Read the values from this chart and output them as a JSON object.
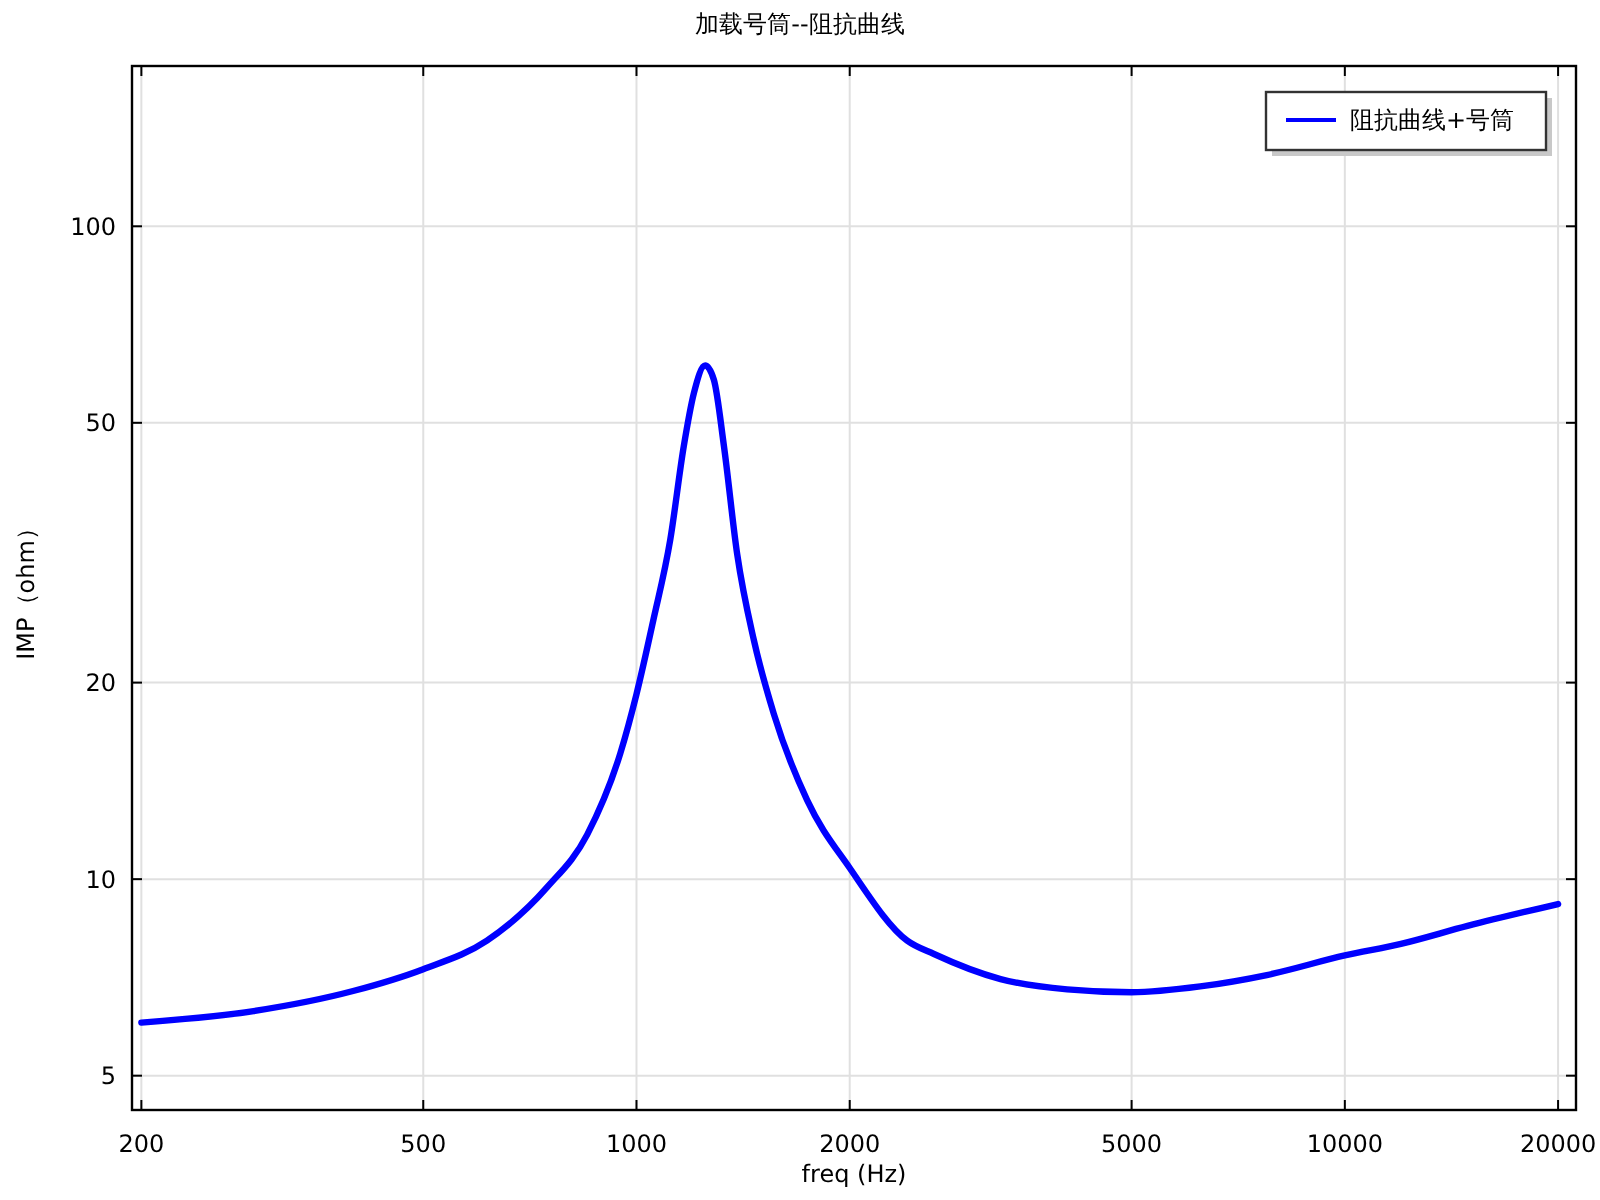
{
  "chart_data": {
    "type": "line",
    "title": "加载号筒--阻抗曲线",
    "xlabel": "freq (Hz)",
    "ylabel": "IMP（ohm）",
    "log": "xy",
    "grid": true,
    "legend": "top right",
    "xlim": [
      194,
      21200
    ],
    "ylim": [
      4.43,
      176
    ],
    "xticks": [
      200,
      500,
      1000,
      2000,
      5000,
      10000,
      20000
    ],
    "yticks": [
      5,
      10,
      20,
      50,
      100
    ],
    "series": [
      {
        "name": "阻抗曲线+号筒",
        "color": "#0000ff",
        "x": [
          200,
          288,
          398,
          500,
          615,
          748,
          852,
          949,
          1000,
          1056,
          1116,
          1166,
          1205,
          1250,
          1286,
          1329,
          1387,
          1465,
          1563,
          1742,
          2000,
          2411,
          2630,
          3266,
          4055,
          5000,
          6250,
          7760,
          10000,
          12000,
          14900,
          20000
        ],
        "values": [
          6.03,
          6.28,
          6.74,
          7.28,
          8.05,
          9.72,
          11.7,
          15.6,
          19.2,
          24.9,
          33.1,
          46,
          55.5,
          61.2,
          58.2,
          46,
          31.5,
          23.2,
          17.9,
          13.2,
          10.4,
          8.05,
          7.68,
          7.03,
          6.78,
          6.71,
          6.85,
          7.13,
          7.64,
          7.96,
          8.48,
          9.16
        ]
      }
    ]
  }
}
